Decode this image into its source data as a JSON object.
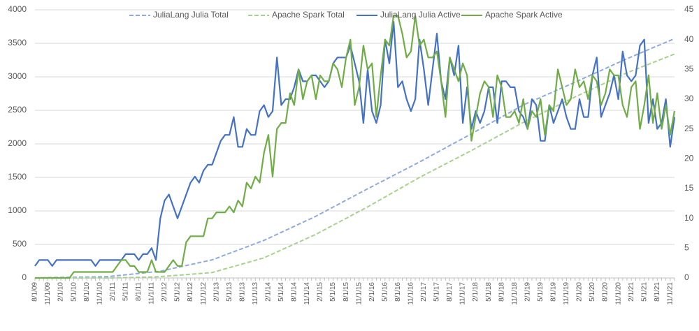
{
  "chart_data": {
    "type": "line",
    "categories": [
      "8/1/09",
      null,
      null,
      "11/1/09",
      null,
      null,
      "2/1/10",
      null,
      null,
      "5/1/10",
      null,
      null,
      "8/1/10",
      null,
      null,
      "11/1/10",
      null,
      null,
      "2/1/11",
      null,
      null,
      "5/1/11",
      null,
      null,
      "8/1/11",
      null,
      null,
      "11/1/11",
      null,
      null,
      "2/1/12",
      null,
      null,
      "5/1/12",
      null,
      null,
      "8/1/12",
      null,
      null,
      "11/1/12",
      null,
      null,
      "2/1/13",
      null,
      null,
      "5/1/13",
      null,
      null,
      "8/1/13",
      null,
      null,
      "11/1/13",
      null,
      null,
      "2/1/14",
      null,
      null,
      "5/1/14",
      null,
      null,
      "8/1/14",
      null,
      null,
      "11/1/14",
      null,
      null,
      "2/1/15",
      null,
      null,
      "5/1/15",
      null,
      null,
      "8/1/15",
      null,
      null,
      "11/1/15",
      null,
      null,
      "2/1/16",
      null,
      null,
      "5/1/16",
      null,
      null,
      "8/1/16",
      null,
      null,
      "11/1/16",
      null,
      null,
      "2/1/17",
      null,
      null,
      "5/1/17",
      null,
      null,
      "8/1/17",
      null,
      null,
      "11/1/17",
      null,
      null,
      "2/1/18",
      null,
      null,
      "5/1/18",
      null,
      null,
      "8/1/18",
      null,
      null,
      "11/1/18",
      null,
      null,
      "2/1/19",
      null,
      null,
      "5/1/19",
      null,
      null,
      "8/1/19",
      null,
      null,
      "11/1/19",
      null,
      null,
      "2/1/20",
      null,
      null,
      "5/1/20",
      null,
      null,
      "8/1/20",
      null,
      null,
      "11/1/20",
      null,
      null,
      "2/1/21",
      null,
      null,
      "5/1/21",
      null,
      null,
      "8/1/21",
      null,
      null,
      "11/1/21",
      null
    ],
    "series": [
      {
        "name": "JuliaLang Julia Total",
        "color": "#8faadc",
        "dashed": true,
        "axis": "y",
        "values": [
          0,
          1,
          2,
          4,
          5,
          6,
          7,
          8,
          9,
          10,
          11,
          12,
          13,
          14,
          16,
          17,
          18,
          20,
          27,
          33,
          40,
          47,
          53,
          60,
          67,
          73,
          80,
          87,
          93,
          100,
          114,
          128,
          143,
          157,
          171,
          185,
          199,
          213,
          228,
          242,
          256,
          270,
          294,
          318,
          343,
          367,
          391,
          415,
          439,
          463,
          488,
          512,
          536,
          560,
          590,
          620,
          650,
          680,
          710,
          740,
          770,
          800,
          830,
          860,
          890,
          920,
          954,
          988,
          1023,
          1057,
          1091,
          1125,
          1159,
          1193,
          1228,
          1262,
          1296,
          1330,
          1363,
          1397,
          1430,
          1463,
          1497,
          1530,
          1563,
          1597,
          1630,
          1663,
          1697,
          1730,
          1765,
          1800,
          1835,
          1870,
          1905,
          1940,
          1975,
          2010,
          2045,
          2080,
          2115,
          2150,
          2186,
          2222,
          2258,
          2293,
          2329,
          2365,
          2401,
          2437,
          2472,
          2508,
          2544,
          2580,
          2608,
          2637,
          2665,
          2693,
          2722,
          2750,
          2778,
          2807,
          2835,
          2863,
          2892,
          2920,
          2949,
          2978,
          3008,
          3037,
          3066,
          3095,
          3124,
          3153,
          3183,
          3212,
          3241,
          3270,
          3297,
          3325,
          3352,
          3379,
          3406,
          3434,
          3461,
          3488,
          3515,
          3543,
          3570
        ]
      },
      {
        "name": "Apache Spark Total",
        "color": "#a9d18e",
        "dashed": true,
        "axis": "y",
        "values": [
          0,
          0,
          0,
          0,
          0,
          0,
          0,
          0,
          0,
          0,
          0,
          0,
          0,
          0,
          0,
          0,
          0,
          0,
          1,
          2,
          3,
          4,
          5,
          7,
          9,
          11,
          13,
          15,
          17,
          20,
          25,
          30,
          35,
          40,
          45,
          50,
          55,
          60,
          65,
          70,
          75,
          80,
          98,
          117,
          135,
          153,
          172,
          190,
          208,
          227,
          245,
          263,
          282,
          300,
          329,
          358,
          388,
          417,
          446,
          475,
          504,
          533,
          563,
          592,
          621,
          650,
          684,
          718,
          753,
          787,
          821,
          855,
          889,
          923,
          958,
          992,
          1026,
          1060,
          1097,
          1133,
          1170,
          1207,
          1243,
          1280,
          1317,
          1353,
          1390,
          1427,
          1463,
          1500,
          1533,
          1567,
          1600,
          1633,
          1667,
          1700,
          1733,
          1767,
          1800,
          1833,
          1867,
          1900,
          1935,
          1970,
          2005,
          2040,
          2075,
          2110,
          2145,
          2180,
          2215,
          2250,
          2285,
          2320,
          2352,
          2383,
          2415,
          2447,
          2478,
          2510,
          2542,
          2573,
          2605,
          2637,
          2668,
          2700,
          2730,
          2760,
          2790,
          2820,
          2850,
          2880,
          2910,
          2940,
          2970,
          3000,
          3030,
          3060,
          3085,
          3111,
          3136,
          3162,
          3187,
          3213,
          3238,
          3264,
          3289,
          3315,
          3340
        ]
      },
      {
        "name": "JuliaLang Julia Active",
        "color": "#4472c4",
        "dashed": false,
        "axis": "y2",
        "values": [
          2,
          3,
          3,
          3,
          2,
          3,
          3,
          3,
          3,
          3,
          3,
          3,
          3,
          3,
          2,
          3,
          3,
          3,
          3,
          3,
          3,
          4,
          4,
          4,
          3,
          4,
          4,
          5,
          3,
          10,
          13,
          14,
          12,
          10,
          12,
          14,
          16,
          17,
          16,
          18,
          19,
          19,
          21,
          23,
          24,
          24,
          27,
          22,
          22,
          25,
          24,
          24,
          28,
          29,
          27,
          28,
          37,
          29,
          30,
          30,
          32,
          35,
          33,
          33,
          34,
          34,
          33,
          32,
          33,
          36,
          37,
          37,
          37,
          39,
          36,
          33,
          26,
          35,
          28,
          26,
          29,
          40,
          36,
          43,
          32,
          33,
          30,
          28,
          30,
          40,
          35,
          29,
          35,
          41,
          33,
          30,
          37,
          34,
          39,
          26,
          32,
          25,
          28,
          26,
          28,
          32,
          32,
          26,
          33,
          33,
          32,
          32,
          28,
          27,
          25,
          30,
          29,
          23,
          23,
          29,
          26,
          28,
          30,
          27,
          25,
          25,
          30,
          27,
          27,
          34,
          37,
          27,
          29,
          31,
          34,
          30,
          38,
          34,
          33,
          34,
          39,
          40,
          26,
          30,
          25,
          26,
          30,
          22,
          27
        ]
      },
      {
        "name": "Apache Spark Active",
        "color": "#70ad47",
        "dashed": false,
        "axis": "y2",
        "values": [
          0,
          0,
          0,
          0,
          0,
          0,
          0,
          0,
          0,
          1,
          1,
          1,
          1,
          1,
          1,
          1,
          1,
          1,
          1,
          2,
          3,
          3,
          2,
          2,
          1,
          1,
          1,
          3,
          1,
          1,
          1,
          2,
          3,
          2,
          2,
          6,
          7,
          7,
          7,
          7,
          10,
          10,
          11,
          11,
          11,
          12,
          11,
          13,
          12,
          16,
          15,
          17,
          16,
          21,
          24,
          17,
          25,
          26,
          26,
          31,
          29,
          35,
          30,
          33,
          34,
          30,
          34,
          33,
          33,
          36,
          35,
          32,
          37,
          40,
          29,
          32,
          39,
          35,
          36,
          27,
          34,
          40,
          39,
          44,
          44,
          41,
          37,
          38,
          44,
          39,
          40,
          37,
          37,
          38,
          33,
          27,
          37,
          35,
          33,
          36,
          34,
          23,
          27,
          31,
          33,
          32,
          27,
          34,
          32,
          27,
          27,
          28,
          26,
          30,
          25,
          28,
          27,
          30,
          24,
          29,
          28,
          35,
          32,
          29,
          30,
          35,
          32,
          33,
          30,
          34,
          33,
          29,
          31,
          35,
          34,
          34,
          29,
          27,
          32,
          33,
          25,
          29,
          34,
          26,
          31,
          25,
          29,
          24,
          28
        ]
      }
    ],
    "ylim": [
      0,
      4000
    ],
    "yticks": [
      0,
      500,
      1000,
      1500,
      2000,
      2500,
      3000,
      3500,
      4000
    ],
    "y2lim": [
      0,
      45
    ],
    "y2ticks": [
      0,
      5,
      10,
      15,
      20,
      25,
      30,
      35,
      40,
      45
    ],
    "grid": true,
    "legend": "top"
  }
}
